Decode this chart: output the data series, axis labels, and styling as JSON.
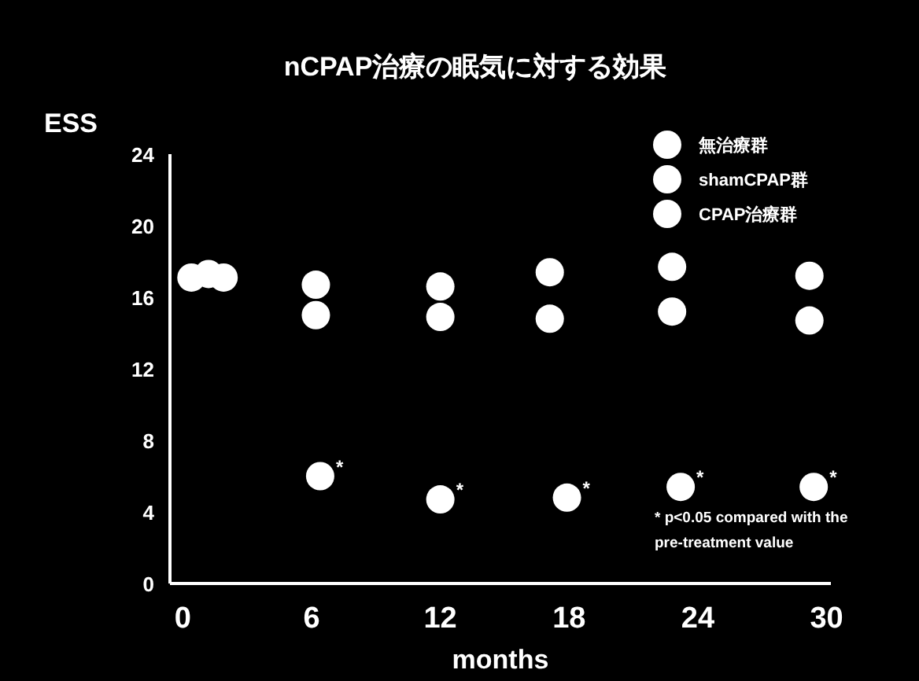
{
  "chart_data": {
    "type": "scatter",
    "title": "nCPAP治療の眠気に対する効果",
    "ylabel": "ESS",
    "xlabel": "months",
    "xlim": [
      -0.6,
      30.2
    ],
    "ylim": [
      0,
      24
    ],
    "xticks": [
      0,
      6,
      12,
      18,
      24,
      30
    ],
    "yticks": [
      0,
      4,
      8,
      12,
      16,
      20,
      24
    ],
    "legend": "top right",
    "marker": "circle",
    "series": [
      {
        "name": "無治療群",
        "color": "#ffffff",
        "x": [
          0.4,
          6.2,
          12,
          17.1,
          22.8,
          29.2
        ],
        "values": [
          17.1,
          16.7,
          16.6,
          17.4,
          17.7,
          17.2
        ]
      },
      {
        "name": "shamCPAP群",
        "color": "#ffffff",
        "x": [
          1.2,
          6.2,
          12,
          17.1,
          22.8,
          29.2
        ],
        "values": [
          17.3,
          15.0,
          14.9,
          14.8,
          15.2,
          14.7
        ]
      },
      {
        "name": "CPAP治療群",
        "color": "#ffffff",
        "x": [
          1.9,
          6.4,
          12,
          17.9,
          23.2,
          29.4
        ],
        "values": [
          17.1,
          6.0,
          4.7,
          4.8,
          5.4,
          5.4
        ]
      }
    ],
    "annotations": [
      {
        "text": "*",
        "x": 6.4,
        "y": 6.0
      },
      {
        "text": "*",
        "x": 12,
        "y": 4.7
      },
      {
        "text": "*",
        "x": 17.9,
        "y": 4.8
      },
      {
        "text": "*",
        "x": 23.2,
        "y": 5.4
      },
      {
        "text": "*",
        "x": 29.4,
        "y": 5.4
      },
      "* p<0.05 compared with the pre-treatment value"
    ]
  }
}
